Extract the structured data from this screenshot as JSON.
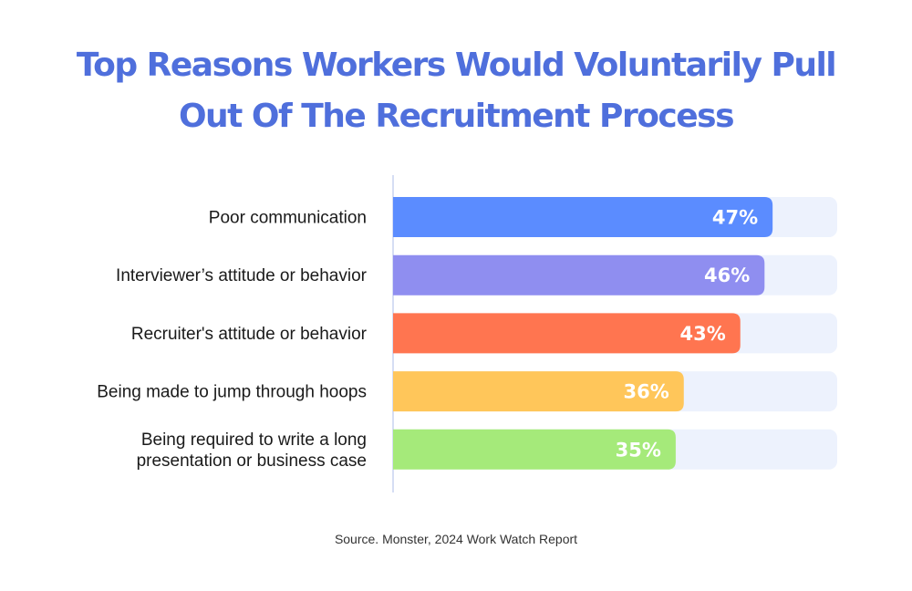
{
  "chart_data": {
    "type": "bar",
    "orientation": "horizontal",
    "title_lines": [
      "Top Reasons Workers Would Voluntarily Pull",
      "Out Of The Recruitment Process"
    ],
    "categories": [
      [
        "Poor communication"
      ],
      [
        "Interviewer’s attitude or behavior"
      ],
      [
        "Recruiter's attitude or behavior"
      ],
      [
        "Being made to jump through hoops"
      ],
      [
        "Being required to write a long",
        "presentation or business case"
      ]
    ],
    "values": [
      47,
      46,
      43,
      36,
      35
    ],
    "value_labels": [
      "47%",
      "46%",
      "43%",
      "36%",
      "35%"
    ],
    "unit": "%",
    "xlim": [
      0,
      55
    ],
    "colors": [
      "#5b8cff",
      "#8f8ef0",
      "#ff7550",
      "#ffc65a",
      "#a5ea7a"
    ],
    "track_color": "#edf2fd",
    "axis_color": "#c9d3f0",
    "grid": false,
    "legend": "none"
  },
  "source": "Source. Monster, 2024 Work Watch Report"
}
